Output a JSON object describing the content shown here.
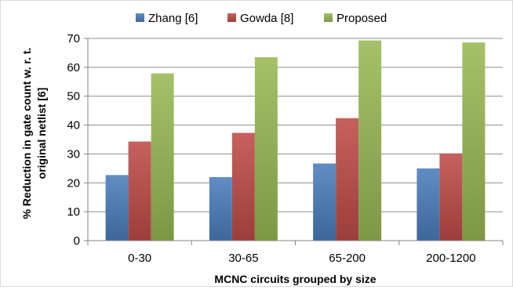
{
  "chart_data": {
    "type": "bar",
    "title": "",
    "xlabel": "MCNC circuits grouped by size",
    "ylabel_lines": [
      "% Reduction in gate count w. r. t.",
      "original netlist [6]"
    ],
    "categories": [
      "0-30",
      "30-65",
      "65-200",
      "200-1200"
    ],
    "ylim": [
      0,
      70
    ],
    "yticks": [
      0,
      10,
      20,
      30,
      40,
      50,
      60,
      70
    ],
    "grid": true,
    "legend_position": "top",
    "series": [
      {
        "name": "Zhang [6]",
        "color": "#4a7ebb",
        "values": [
          22.7,
          22.0,
          26.7,
          25.0
        ]
      },
      {
        "name": "Gowda [8]",
        "color": "#be4b48",
        "values": [
          34.3,
          37.3,
          42.4,
          30.2
        ]
      },
      {
        "name": "Proposed",
        "color": "#98b954",
        "values": [
          57.9,
          63.5,
          69.3,
          68.6
        ]
      }
    ]
  }
}
